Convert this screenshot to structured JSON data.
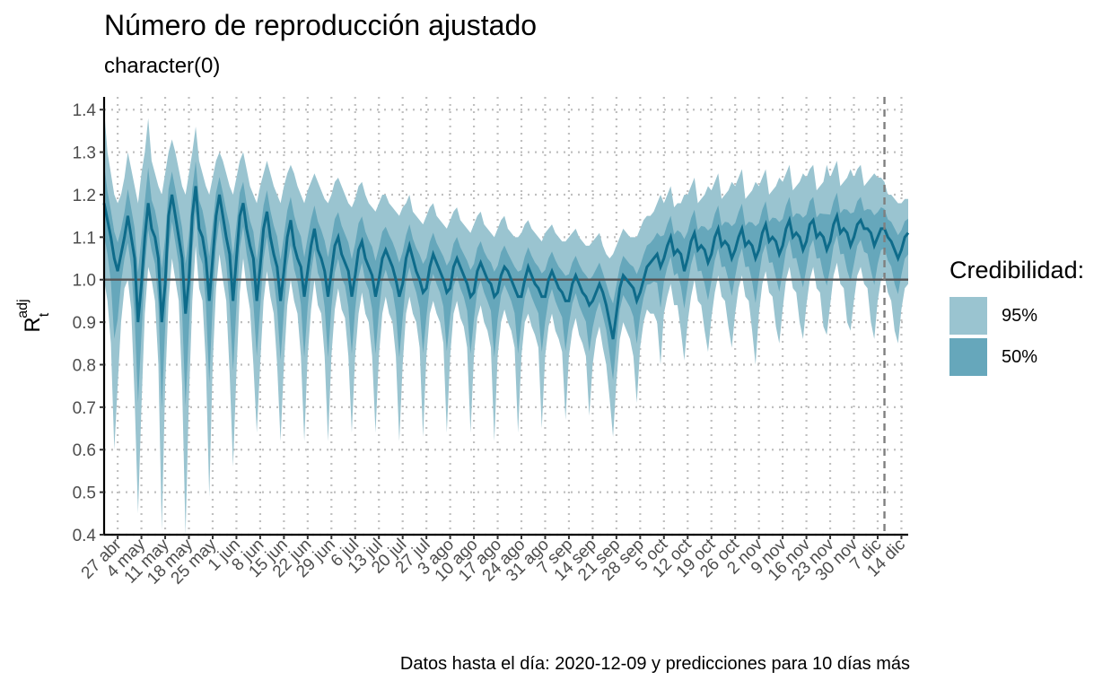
{
  "title": "Número de reproducción ajustado",
  "subtitle": "character(0)",
  "caption": "Datos hasta el día: 2020-12-09 y predicciones para 10 días más",
  "legend": {
    "title": "Credibilidad:",
    "items": [
      {
        "label": "95%",
        "color": "#9ac4d0"
      },
      {
        "label": "50%",
        "color": "#66a7bb"
      }
    ]
  },
  "colors": {
    "line": "#0e6b8a",
    "band95": "#9ac4d0",
    "band50": "#66a7bb",
    "reference": "#555555",
    "grid": "#bfbfbf"
  },
  "chart_data": {
    "type": "area",
    "x_start": "2020-04-23",
    "forecast_start": "2020-12-09",
    "ylabel": "R_t^adj",
    "ylim": [
      0.4,
      1.43
    ],
    "reference_line": 1.0,
    "y_ticks": [
      "0.4",
      "0.5",
      "0.6",
      "0.7",
      "0.8",
      "0.9",
      "1.0",
      "1.1",
      "1.2",
      "1.3",
      "1.4"
    ],
    "x_ticks": [
      {
        "label": "27 abr",
        "date": "2020-04-27"
      },
      {
        "label": "4 may",
        "date": "2020-05-04"
      },
      {
        "label": "11 may",
        "date": "2020-05-11"
      },
      {
        "label": "18 may",
        "date": "2020-05-18"
      },
      {
        "label": "25 may",
        "date": "2020-05-25"
      },
      {
        "label": "1 jun",
        "date": "2020-06-01"
      },
      {
        "label": "8 jun",
        "date": "2020-06-08"
      },
      {
        "label": "15 jun",
        "date": "2020-06-15"
      },
      {
        "label": "22 jun",
        "date": "2020-06-22"
      },
      {
        "label": "29 jun",
        "date": "2020-06-29"
      },
      {
        "label": "6 jul",
        "date": "2020-07-06"
      },
      {
        "label": "13 jul",
        "date": "2020-07-13"
      },
      {
        "label": "20 jul",
        "date": "2020-07-20"
      },
      {
        "label": "27 jul",
        "date": "2020-07-27"
      },
      {
        "label": "3 ago",
        "date": "2020-08-03"
      },
      {
        "label": "10 ago",
        "date": "2020-08-10"
      },
      {
        "label": "17 ago",
        "date": "2020-08-17"
      },
      {
        "label": "24 ago",
        "date": "2020-08-24"
      },
      {
        "label": "31 ago",
        "date": "2020-08-31"
      },
      {
        "label": "7 sep",
        "date": "2020-09-07"
      },
      {
        "label": "14 sep",
        "date": "2020-09-14"
      },
      {
        "label": "21 sep",
        "date": "2020-09-21"
      },
      {
        "label": "28 sep",
        "date": "2020-09-28"
      },
      {
        "label": "5 oct",
        "date": "2020-10-05"
      },
      {
        "label": "12 oct",
        "date": "2020-10-12"
      },
      {
        "label": "19 oct",
        "date": "2020-10-19"
      },
      {
        "label": "26 oct",
        "date": "2020-10-26"
      },
      {
        "label": "2 nov",
        "date": "2020-11-02"
      },
      {
        "label": "9 nov",
        "date": "2020-11-09"
      },
      {
        "label": "16 nov",
        "date": "2020-11-16"
      },
      {
        "label": "23 nov",
        "date": "2020-11-23"
      },
      {
        "label": "30 nov",
        "date": "2020-11-30"
      },
      {
        "label": "7 dic",
        "date": "2020-12-07"
      },
      {
        "label": "14 dic",
        "date": "2020-12-14"
      }
    ],
    "weekly": [
      {
        "week_of": "2020-04-23",
        "mean": [
          1.18,
          1.14,
          1.1,
          1.05,
          1.02,
          1.06,
          1.1
        ],
        "lo95": [
          1.0,
          0.95,
          0.85,
          0.6,
          0.75,
          0.9,
          0.98
        ],
        "hi95": [
          1.4,
          1.3,
          1.25,
          1.2,
          1.18,
          1.2,
          1.24
        ]
      },
      {
        "week_of": "2020-04-30",
        "mean": [
          1.15,
          1.1,
          1.05,
          0.9,
          0.99,
          1.1,
          1.18
        ],
        "lo95": [
          1.0,
          0.93,
          0.72,
          0.45,
          0.7,
          0.92,
          1.03
        ],
        "hi95": [
          1.3,
          1.26,
          1.22,
          1.18,
          1.25,
          1.3,
          1.38
        ]
      },
      {
        "week_of": "2020-05-07",
        "mean": [
          1.12,
          1.1,
          1.05,
          0.9,
          0.99,
          1.15,
          1.2
        ],
        "lo95": [
          1.0,
          0.95,
          0.8,
          0.41,
          0.75,
          0.95,
          1.05
        ],
        "hi95": [
          1.28,
          1.25,
          1.22,
          1.2,
          1.25,
          1.3,
          1.33
        ]
      },
      {
        "week_of": "2020-05-14",
        "mean": [
          1.15,
          1.1,
          1.05,
          0.92,
          1.0,
          1.15,
          1.22
        ],
        "lo95": [
          1.0,
          0.95,
          0.75,
          0.4,
          0.72,
          0.95,
          1.08
        ],
        "hi95": [
          1.3,
          1.26,
          1.22,
          1.2,
          1.25,
          1.3,
          1.36
        ]
      },
      {
        "week_of": "2020-05-21",
        "mean": [
          1.12,
          1.1,
          1.05,
          0.95,
          1.05,
          1.15,
          1.2
        ],
        "lo95": [
          0.98,
          0.95,
          0.8,
          0.49,
          0.8,
          0.98,
          1.06
        ],
        "hi95": [
          1.28,
          1.25,
          1.22,
          1.2,
          1.24,
          1.28,
          1.3
        ]
      },
      {
        "week_of": "2020-05-28",
        "mean": [
          1.15,
          1.1,
          1.06,
          0.95,
          1.05,
          1.15,
          1.18
        ],
        "lo95": [
          1.0,
          0.95,
          0.78,
          0.56,
          0.78,
          0.97,
          1.05
        ],
        "hi95": [
          1.28,
          1.25,
          1.22,
          1.2,
          1.24,
          1.28,
          1.3
        ]
      },
      {
        "week_of": "2020-06-04",
        "mean": [
          1.12,
          1.08,
          1.05,
          0.95,
          1.03,
          1.12,
          1.16
        ],
        "lo95": [
          0.98,
          0.93,
          0.8,
          0.64,
          0.8,
          0.95,
          1.02
        ],
        "hi95": [
          1.26,
          1.22,
          1.2,
          1.18,
          1.22,
          1.25,
          1.28
        ]
      },
      {
        "week_of": "2020-06-11",
        "mean": [
          1.1,
          1.06,
          1.03,
          0.95,
          1.02,
          1.1,
          1.14
        ],
        "lo95": [
          0.96,
          0.92,
          0.8,
          0.62,
          0.8,
          0.94,
          1.0
        ],
        "hi95": [
          1.25,
          1.22,
          1.2,
          1.18,
          1.22,
          1.25,
          1.27
        ]
      },
      {
        "week_of": "2020-06-18",
        "mean": [
          1.08,
          1.05,
          1.03,
          0.96,
          1.02,
          1.08,
          1.12
        ],
        "lo95": [
          0.95,
          0.92,
          0.82,
          0.62,
          0.82,
          0.93,
          1.0
        ],
        "hi95": [
          1.25,
          1.22,
          1.2,
          1.18,
          1.21,
          1.23,
          1.25
        ]
      },
      {
        "week_of": "2020-06-25",
        "mean": [
          1.07,
          1.05,
          1.02,
          0.96,
          1.02,
          1.08,
          1.1
        ],
        "lo95": [
          0.94,
          0.92,
          0.82,
          0.62,
          0.82,
          0.93,
          0.98
        ],
        "hi95": [
          1.23,
          1.21,
          1.19,
          1.18,
          1.2,
          1.23,
          1.24
        ]
      },
      {
        "week_of": "2020-07-02",
        "mean": [
          1.06,
          1.04,
          1.02,
          0.96,
          1.01,
          1.07,
          1.09
        ],
        "lo95": [
          0.93,
          0.91,
          0.82,
          0.64,
          0.82,
          0.92,
          0.97
        ],
        "hi95": [
          1.22,
          1.2,
          1.18,
          1.17,
          1.19,
          1.22,
          1.23
        ]
      },
      {
        "week_of": "2020-07-09",
        "mean": [
          1.05,
          1.03,
          1.01,
          0.96,
          1.0,
          1.05,
          1.07
        ],
        "lo95": [
          0.92,
          0.9,
          0.82,
          0.64,
          0.82,
          0.92,
          0.96
        ],
        "hi95": [
          1.2,
          1.18,
          1.17,
          1.16,
          1.18,
          1.2,
          1.2
        ]
      },
      {
        "week_of": "2020-07-16",
        "mean": [
          1.05,
          1.03,
          1.0,
          0.96,
          0.99,
          1.05,
          1.08
        ],
        "lo95": [
          0.92,
          0.9,
          0.82,
          0.62,
          0.8,
          0.92,
          0.96
        ],
        "hi95": [
          1.18,
          1.17,
          1.16,
          1.15,
          1.17,
          1.18,
          1.2
        ]
      },
      {
        "week_of": "2020-07-23",
        "mean": [
          1.05,
          1.02,
          1.0,
          0.97,
          0.98,
          1.03,
          1.06
        ],
        "lo95": [
          0.92,
          0.9,
          0.84,
          0.63,
          0.82,
          0.92,
          0.95
        ],
        "hi95": [
          1.16,
          1.15,
          1.14,
          1.13,
          1.15,
          1.17,
          1.18
        ]
      },
      {
        "week_of": "2020-07-30",
        "mean": [
          1.04,
          1.02,
          1.0,
          0.97,
          0.98,
          1.03,
          1.05
        ],
        "lo95": [
          0.92,
          0.9,
          0.85,
          0.64,
          0.82,
          0.92,
          0.95
        ],
        "hi95": [
          1.15,
          1.14,
          1.13,
          1.12,
          1.14,
          1.16,
          1.17
        ]
      },
      {
        "week_of": "2020-08-06",
        "mean": [
          1.03,
          1.01,
          0.99,
          0.96,
          0.97,
          1.02,
          1.04
        ],
        "lo95": [
          0.91,
          0.89,
          0.84,
          0.64,
          0.82,
          0.91,
          0.94
        ],
        "hi95": [
          1.14,
          1.13,
          1.12,
          1.11,
          1.13,
          1.15,
          1.16
        ]
      },
      {
        "week_of": "2020-08-13",
        "mean": [
          1.02,
          1.0,
          0.99,
          0.96,
          0.97,
          1.01,
          1.03
        ],
        "lo95": [
          0.9,
          0.88,
          0.84,
          0.62,
          0.82,
          0.9,
          0.93
        ],
        "hi95": [
          1.13,
          1.12,
          1.11,
          1.1,
          1.12,
          1.14,
          1.15
        ]
      },
      {
        "week_of": "2020-08-20",
        "mean": [
          1.02,
          1.0,
          0.98,
          0.96,
          0.96,
          1.0,
          1.03
        ],
        "lo95": [
          0.9,
          0.88,
          0.84,
          0.64,
          0.82,
          0.9,
          0.92
        ],
        "hi95": [
          1.12,
          1.11,
          1.1,
          1.1,
          1.11,
          1.13,
          1.14
        ]
      },
      {
        "week_of": "2020-08-27",
        "mean": [
          1.01,
          0.99,
          0.98,
          0.96,
          0.96,
          1.0,
          1.02
        ],
        "lo95": [
          0.89,
          0.87,
          0.84,
          0.65,
          0.82,
          0.89,
          0.92
        ],
        "hi95": [
          1.12,
          1.11,
          1.1,
          1.09,
          1.11,
          1.12,
          1.13
        ]
      },
      {
        "week_of": "2020-09-03",
        "mean": [
          1.0,
          0.98,
          0.97,
          0.95,
          0.95,
          0.99,
          1.01
        ],
        "lo95": [
          0.88,
          0.86,
          0.83,
          0.67,
          0.82,
          0.88,
          0.91
        ],
        "hi95": [
          1.11,
          1.1,
          1.09,
          1.09,
          1.1,
          1.11,
          1.12
        ]
      },
      {
        "week_of": "2020-09-10",
        "mean": [
          0.99,
          0.97,
          0.96,
          0.94,
          0.95,
          0.97,
          0.99
        ],
        "lo95": [
          0.87,
          0.85,
          0.82,
          0.68,
          0.8,
          0.86,
          0.89
        ],
        "hi95": [
          1.1,
          1.09,
          1.08,
          1.08,
          1.09,
          1.1,
          1.11
        ]
      },
      {
        "week_of": "2020-09-17",
        "mean": [
          0.97,
          0.94,
          0.9,
          0.86,
          0.92,
          0.98,
          1.01
        ],
        "lo95": [
          0.84,
          0.8,
          0.72,
          0.63,
          0.76,
          0.86,
          0.9
        ],
        "hi95": [
          1.08,
          1.06,
          1.05,
          1.06,
          1.08,
          1.1,
          1.12
        ]
      },
      {
        "week_of": "2020-09-24",
        "mean": [
          1.0,
          0.99,
          0.98,
          0.95,
          0.97,
          1.0,
          1.03
        ],
        "lo95": [
          0.88,
          0.86,
          0.82,
          0.71,
          0.84,
          0.9,
          0.93
        ],
        "hi95": [
          1.11,
          1.1,
          1.1,
          1.1,
          1.12,
          1.14,
          1.15
        ]
      },
      {
        "week_of": "2020-10-01",
        "mean": [
          1.04,
          1.05,
          1.06,
          1.03,
          1.05,
          1.08,
          1.1
        ],
        "lo95": [
          0.92,
          0.92,
          0.9,
          0.8,
          0.92,
          0.96,
          0.99
        ],
        "hi95": [
          1.15,
          1.16,
          1.18,
          1.2,
          1.18,
          1.2,
          1.22
        ]
      },
      {
        "week_of": "2020-10-08",
        "mean": [
          1.06,
          1.07,
          1.06,
          1.02,
          1.05,
          1.09,
          1.11
        ],
        "lo95": [
          0.94,
          0.94,
          0.88,
          0.81,
          0.9,
          0.96,
          1.0
        ],
        "hi95": [
          1.17,
          1.18,
          1.18,
          1.2,
          1.2,
          1.22,
          1.24
        ]
      },
      {
        "week_of": "2020-10-15",
        "mean": [
          1.07,
          1.08,
          1.07,
          1.04,
          1.06,
          1.1,
          1.12
        ],
        "lo95": [
          0.95,
          0.94,
          0.88,
          0.83,
          0.91,
          0.97,
          1.01
        ],
        "hi95": [
          1.18,
          1.19,
          1.2,
          1.22,
          1.21,
          1.23,
          1.25
        ]
      },
      {
        "week_of": "2020-10-22",
        "mean": [
          1.08,
          1.09,
          1.08,
          1.05,
          1.07,
          1.1,
          1.12
        ],
        "lo95": [
          0.96,
          0.95,
          0.89,
          0.84,
          0.92,
          0.98,
          1.01
        ],
        "hi95": [
          1.19,
          1.2,
          1.21,
          1.23,
          1.22,
          1.24,
          1.26
        ]
      },
      {
        "week_of": "2020-10-29",
        "mean": [
          1.08,
          1.09,
          1.08,
          1.05,
          1.07,
          1.11,
          1.13
        ],
        "lo95": [
          0.96,
          0.95,
          0.88,
          0.8,
          0.92,
          0.99,
          1.02
        ],
        "hi95": [
          1.19,
          1.2,
          1.21,
          1.23,
          1.22,
          1.24,
          1.26
        ]
      },
      {
        "week_of": "2020-11-05",
        "mean": [
          1.09,
          1.1,
          1.09,
          1.06,
          1.08,
          1.12,
          1.14
        ],
        "lo95": [
          0.97,
          0.96,
          0.89,
          0.85,
          0.93,
          1.0,
          1.03
        ],
        "hi95": [
          1.2,
          1.21,
          1.22,
          1.24,
          1.23,
          1.25,
          1.27
        ]
      },
      {
        "week_of": "2020-11-12",
        "mean": [
          1.1,
          1.11,
          1.1,
          1.07,
          1.09,
          1.13,
          1.14
        ],
        "lo95": [
          0.98,
          0.97,
          0.9,
          0.86,
          0.94,
          1.0,
          1.03
        ],
        "hi95": [
          1.21,
          1.22,
          1.23,
          1.25,
          1.24,
          1.26,
          1.27
        ]
      },
      {
        "week_of": "2020-11-19",
        "mean": [
          1.1,
          1.11,
          1.1,
          1.07,
          1.09,
          1.13,
          1.15
        ],
        "lo95": [
          0.98,
          0.97,
          0.89,
          0.87,
          0.94,
          1.01,
          1.04
        ],
        "hi95": [
          1.21,
          1.22,
          1.23,
          1.27,
          1.24,
          1.26,
          1.28
        ]
      },
      {
        "week_of": "2020-11-26",
        "mean": [
          1.11,
          1.12,
          1.11,
          1.08,
          1.1,
          1.13,
          1.14
        ],
        "lo95": [
          0.99,
          0.98,
          0.9,
          0.88,
          0.95,
          1.01,
          1.03
        ],
        "hi95": [
          1.22,
          1.23,
          1.24,
          1.26,
          1.24,
          1.26,
          1.27
        ]
      },
      {
        "week_of": "2020-12-03",
        "mean": [
          1.12,
          1.12,
          1.11,
          1.08,
          1.1,
          1.12,
          1.12
        ],
        "lo95": [
          0.99,
          0.98,
          0.9,
          0.86,
          0.95,
          1.0,
          1.01
        ],
        "hi95": [
          1.22,
          1.23,
          1.24,
          1.25,
          1.24,
          1.24,
          1.23
        ]
      },
      {
        "week_of": "2020-12-10",
        "mean": [
          1.1,
          1.09,
          1.07,
          1.05,
          1.07,
          1.1,
          1.11
        ],
        "lo95": [
          0.97,
          0.95,
          0.88,
          0.85,
          0.93,
          0.98,
          0.99
        ],
        "hi95": [
          1.2,
          1.2,
          1.19,
          1.18,
          1.18,
          1.19,
          1.19
        ]
      }
    ]
  }
}
